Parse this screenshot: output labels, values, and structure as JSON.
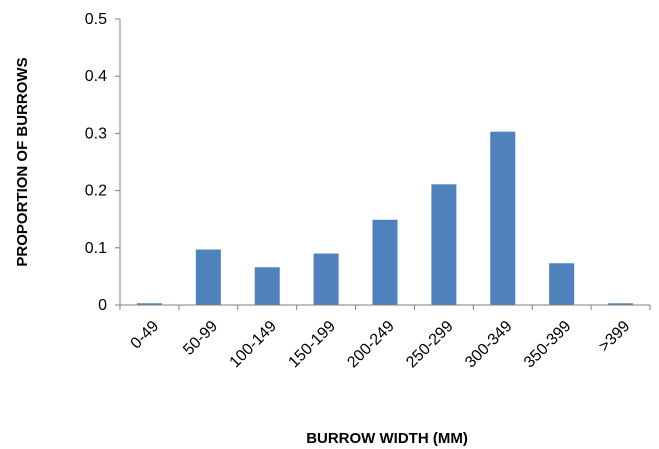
{
  "chart_data": {
    "type": "bar",
    "categories": [
      "0-49",
      "50-99",
      "100-149",
      "150-199",
      "200-249",
      "250-299",
      "300-349",
      "350-399",
      ">399"
    ],
    "values": [
      0.003,
      0.097,
      0.066,
      0.09,
      0.149,
      0.211,
      0.303,
      0.073,
      0.003
    ],
    "xlabel": "BURROW WIDTH (MM)",
    "ylabel": "PROPORTION OF BURROWS",
    "ylim": [
      0,
      0.5
    ],
    "yticks": [
      "0",
      "0.1",
      "0.2",
      "0.3",
      "0.4",
      "0.5"
    ],
    "bar_color": "#4f81bd",
    "grid": false,
    "legend": "none"
  }
}
